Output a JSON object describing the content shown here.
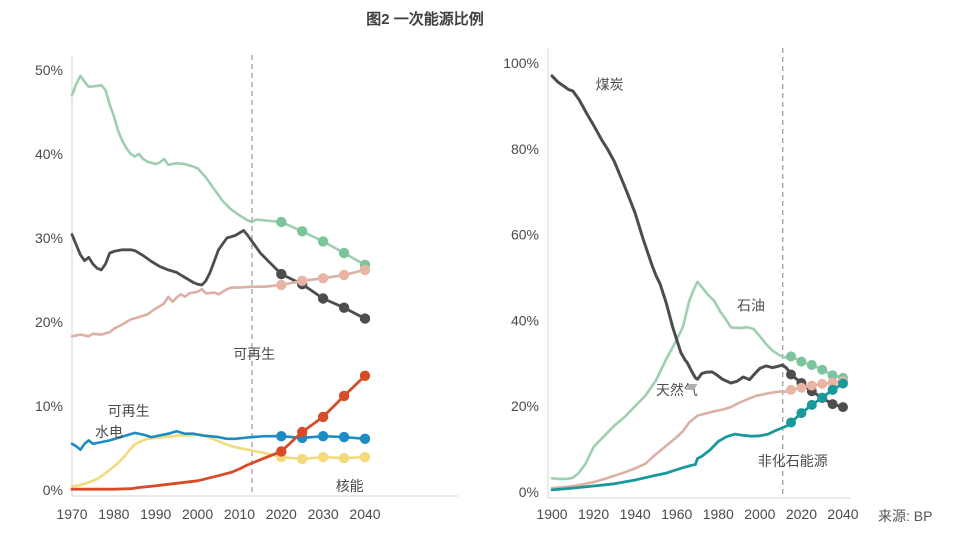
{
  "title": "图2 一次能源比例",
  "source": "来源: BP",
  "colors": {
    "axis": "#d4d4d4",
    "dashed": "#a0a0a0",
    "text": "#4a4a4a",
    "oil_green": "#9ecfb0",
    "oil_green_dot": "#7cc49c",
    "coal_dark": "#4d4d4d",
    "gas_pink": "#dcb0a5",
    "gas_pink_dot": "#e9b4a4",
    "hydro_blue": "#1d8cc2",
    "nuclear_yellow": "#f3da7d",
    "renew_red": "#d84b28",
    "nonfossil_teal": "#19999b"
  },
  "chart_data": [
    {
      "type": "line",
      "id": "left",
      "xlim": [
        1970,
        2040
      ],
      "ylim": [
        0,
        50
      ],
      "ytick_values": [
        0,
        10,
        20,
        30,
        40,
        50
      ],
      "ytick_labels": [
        "0%",
        "10%",
        "20%",
        "30%",
        "40%",
        "50%"
      ],
      "xticks": [
        1970,
        1980,
        1990,
        2000,
        2010,
        2020,
        2030,
        2040
      ],
      "dashed_x": 2013,
      "annotations": [
        {
          "text": "可再生",
          "x": 2008.5,
          "y": 16.2
        },
        {
          "text": "可再生",
          "x": 1978.5,
          "y": 9.4
        },
        {
          "text": "水电",
          "x": 1975.5,
          "y": 6.9
        },
        {
          "text": "核能",
          "x": 2033.0,
          "y": 0.5
        }
      ],
      "series": [
        {
          "id": "oil",
          "label": "",
          "color": "#9ecfb0",
          "dot_color": "#7cc49c",
          "width": 2.6,
          "x": [
            1970,
            1971,
            1972,
            1973,
            1974,
            1976,
            1977,
            1978,
            1979,
            1980,
            1981,
            1982,
            1983,
            1984,
            1985,
            1986,
            1987,
            1988,
            1990,
            1991,
            1992,
            1993,
            1995,
            1997,
            1999,
            2000,
            2002,
            2004,
            2006,
            2008,
            2010,
            2012,
            2013,
            2014,
            2016,
            2020,
            2025,
            2030,
            2035,
            2040
          ],
          "y": [
            47.0,
            48.3,
            49.3,
            48.6,
            48.0,
            48.1,
            48.2,
            47.6,
            45.9,
            44.5,
            42.8,
            41.6,
            40.7,
            40.0,
            39.7,
            40.0,
            39.4,
            39.1,
            38.8,
            39.0,
            39.4,
            38.7,
            38.9,
            38.8,
            38.5,
            38.3,
            37.2,
            35.8,
            34.4,
            33.4,
            32.7,
            32.1,
            31.9,
            32.2,
            32.1,
            31.9,
            30.8,
            29.6,
            28.2,
            26.8
          ],
          "dots": {
            "x": [
              2020,
              2025,
              2030,
              2035,
              2040
            ],
            "y": [
              31.9,
              30.8,
              29.6,
              28.2,
              26.8
            ]
          }
        },
        {
          "id": "coal",
          "label": "",
          "color": "#4d4d4d",
          "dot_color": "#4d4d4d",
          "width": 2.8,
          "x": [
            1970,
            1971,
            1972,
            1973,
            1974,
            1975,
            1976,
            1977,
            1978,
            1979,
            1980,
            1982,
            1984,
            1985,
            1987,
            1989,
            1991,
            1993,
            1995,
            1997,
            1999,
            2000,
            2001,
            2002,
            2003,
            2005,
            2007,
            2009,
            2010,
            2011,
            2012,
            2013,
            2015,
            2020,
            2025,
            2030,
            2035,
            2040
          ],
          "y": [
            30.4,
            29.2,
            28.0,
            27.3,
            27.7,
            26.9,
            26.4,
            26.2,
            26.9,
            28.2,
            28.4,
            28.6,
            28.6,
            28.5,
            27.9,
            27.2,
            26.6,
            26.2,
            25.9,
            25.3,
            24.7,
            24.5,
            24.4,
            24.9,
            25.9,
            28.6,
            30.0,
            30.3,
            30.6,
            30.9,
            30.3,
            29.6,
            28.2,
            25.7,
            24.5,
            22.8,
            21.7,
            20.4
          ],
          "dots": {
            "x": [
              2020,
              2025,
              2030,
              2035,
              2040
            ],
            "y": [
              25.7,
              24.5,
              22.8,
              21.7,
              20.4
            ]
          }
        },
        {
          "id": "gas",
          "label": "",
          "color": "#dcb0a5",
          "dot_color": "#e9b4a4",
          "width": 2.6,
          "x": [
            1970,
            1972,
            1974,
            1975,
            1977,
            1979,
            1980,
            1982,
            1984,
            1986,
            1988,
            1990,
            1992,
            1993,
            1994,
            1995,
            1996,
            1997,
            1998,
            2000,
            2001,
            2002,
            2004,
            2005,
            2007,
            2008,
            2010,
            2013,
            2016,
            2020,
            2025,
            2030,
            2035,
            2040
          ],
          "y": [
            18.3,
            18.5,
            18.3,
            18.6,
            18.5,
            18.8,
            19.2,
            19.7,
            20.3,
            20.6,
            20.9,
            21.6,
            22.2,
            23.0,
            22.4,
            22.9,
            23.3,
            23.0,
            23.4,
            23.6,
            23.9,
            23.4,
            23.5,
            23.3,
            23.9,
            24.1,
            24.1,
            24.2,
            24.2,
            24.4,
            24.9,
            25.2,
            25.6,
            26.2
          ],
          "dots": {
            "x": [
              2020,
              2025,
              2030,
              2035,
              2040
            ],
            "y": [
              24.4,
              24.9,
              25.2,
              25.6,
              26.2
            ]
          }
        },
        {
          "id": "nuclear",
          "label": "核能",
          "color": "#f3da7d",
          "dot_color": "#f3da7d",
          "width": 2.6,
          "x": [
            1970,
            1972,
            1974,
            1976,
            1978,
            1980,
            1981,
            1982,
            1983,
            1984,
            1985,
            1986,
            1987,
            1988,
            1990,
            1992,
            1994,
            1996,
            1998,
            2000,
            2001,
            2003,
            2005,
            2007,
            2009,
            2011,
            2013,
            2016,
            2020,
            2025,
            2030,
            2035,
            2040
          ],
          "y": [
            0.4,
            0.6,
            0.9,
            1.3,
            2.0,
            2.8,
            3.2,
            3.7,
            4.3,
            4.9,
            5.4,
            5.7,
            5.9,
            6.1,
            6.2,
            6.3,
            6.4,
            6.5,
            6.5,
            6.6,
            6.6,
            6.2,
            5.8,
            5.4,
            5.1,
            4.9,
            4.7,
            4.4,
            3.9,
            3.7,
            3.9,
            3.8,
            3.9
          ],
          "dots": {
            "x": [
              2020,
              2025,
              2030,
              2035,
              2040
            ],
            "y": [
              3.9,
              3.7,
              3.9,
              3.8,
              3.9
            ]
          }
        },
        {
          "id": "hydro",
          "label": "水电",
          "color": "#1d8cc2",
          "dot_color": "#1d8cc2",
          "width": 2.6,
          "x": [
            1970,
            1971,
            1972,
            1973,
            1974,
            1975,
            1977,
            1979,
            1981,
            1983,
            1985,
            1987,
            1989,
            1991,
            1993,
            1995,
            1997,
            1999,
            2001,
            2003,
            2005,
            2007,
            2009,
            2011,
            2013,
            2016,
            2020,
            2025,
            2030,
            2035,
            2040
          ],
          "y": [
            5.5,
            5.2,
            4.8,
            5.5,
            5.9,
            5.5,
            5.7,
            5.9,
            6.2,
            6.5,
            6.8,
            6.6,
            6.3,
            6.5,
            6.7,
            7.0,
            6.7,
            6.7,
            6.5,
            6.4,
            6.3,
            6.1,
            6.1,
            6.2,
            6.3,
            6.4,
            6.4,
            6.2,
            6.4,
            6.3,
            6.1
          ],
          "dots": {
            "x": [
              2020,
              2025,
              2030,
              2035,
              2040
            ],
            "y": [
              6.4,
              6.2,
              6.4,
              6.3,
              6.1
            ]
          }
        },
        {
          "id": "renewables",
          "label": "可再生",
          "color": "#d84b28",
          "dot_color": "#d84b28",
          "width": 2.8,
          "x": [
            1970,
            1975,
            1980,
            1984,
            1986,
            1990,
            1995,
            2000,
            2005,
            2008,
            2010,
            2012,
            2014,
            2016,
            2020,
            2025,
            2030,
            2035,
            2040
          ],
          "y": [
            0.1,
            0.1,
            0.1,
            0.15,
            0.3,
            0.5,
            0.8,
            1.1,
            1.7,
            2.1,
            2.5,
            3.0,
            3.4,
            3.8,
            4.6,
            6.9,
            8.7,
            11.2,
            13.6
          ],
          "dots": {
            "x": [
              2020,
              2025,
              2030,
              2035,
              2040
            ],
            "y": [
              4.6,
              6.9,
              8.7,
              11.2,
              13.6
            ]
          }
        }
      ]
    },
    {
      "type": "line",
      "id": "right",
      "xlim": [
        1900,
        2040
      ],
      "ylim": [
        0,
        100
      ],
      "ytick_values": [
        0,
        20,
        40,
        60,
        80,
        100
      ],
      "ytick_labels": [
        "0%",
        "20%",
        "40%",
        "60%",
        "80%",
        "100%"
      ],
      "xticks": [
        1900,
        1920,
        1940,
        1960,
        1980,
        2000,
        2020,
        2040
      ],
      "dashed_x": 2011,
      "annotations": [
        {
          "text": "煤炭",
          "x": 1921,
          "y": 95.0
        },
        {
          "text": "石油",
          "x": 1989,
          "y": 43.5
        },
        {
          "text": "天然气",
          "x": 1950,
          "y": 23.8
        },
        {
          "text": "非化石能源",
          "x": 1999,
          "y": 7.2
        }
      ],
      "series": [
        {
          "id": "oil",
          "label": "石油",
          "color": "#9ecfb0",
          "dot_color": "#7cc49c",
          "width": 2.6,
          "x": [
            1900,
            1904,
            1908,
            1910,
            1913,
            1916,
            1920,
            1925,
            1930,
            1935,
            1940,
            1945,
            1950,
            1955,
            1960,
            1963,
            1966,
            1968,
            1970,
            1972,
            1975,
            1978,
            1981,
            1984,
            1986,
            1990,
            1994,
            1997,
            2000,
            2003,
            2006,
            2009,
            2012,
            2013,
            2015,
            2020,
            2025,
            2030,
            2035,
            2040
          ],
          "y": [
            3.2,
            3.0,
            3.1,
            3.3,
            4.5,
            6.5,
            10.5,
            13.0,
            15.5,
            17.5,
            20.0,
            22.5,
            26.0,
            31.0,
            35.5,
            38.5,
            44.5,
            47.0,
            49.0,
            47.8,
            46.0,
            44.6,
            42.0,
            40.0,
            38.4,
            38.2,
            38.4,
            38.0,
            36.3,
            34.5,
            33.0,
            32.0,
            31.4,
            31.3,
            31.6,
            30.4,
            29.6,
            28.5,
            27.2,
            26.6
          ],
          "dots": {
            "x": [
              2015,
              2020,
              2025,
              2030,
              2035,
              2040
            ],
            "y": [
              31.6,
              30.4,
              29.6,
              28.5,
              27.2,
              26.6
            ]
          }
        },
        {
          "id": "coal",
          "label": "煤炭",
          "color": "#4d4d4d",
          "dot_color": "#4d4d4d",
          "width": 3.0,
          "x": [
            1900,
            1903,
            1906,
            1908,
            1910,
            1913,
            1917,
            1920,
            1924,
            1927,
            1930,
            1933,
            1936,
            1940,
            1944,
            1948,
            1950,
            1952,
            1955,
            1958,
            1960,
            1962,
            1964,
            1965,
            1967,
            1969,
            1970,
            1972,
            1974,
            1977,
            1979,
            1982,
            1986,
            1989,
            1992,
            1995,
            1998,
            2000,
            2003,
            2006,
            2008,
            2011,
            2013,
            2015,
            2020,
            2025,
            2030,
            2035,
            2040
          ],
          "y": [
            97.0,
            95.5,
            94.5,
            93.8,
            93.5,
            91.5,
            88.0,
            85.5,
            82.0,
            79.7,
            77.0,
            73.5,
            70.0,
            65.0,
            58.7,
            53.0,
            50.5,
            48.5,
            44.0,
            38.5,
            35.5,
            32.5,
            30.8,
            30.2,
            28.3,
            26.6,
            26.3,
            27.6,
            27.9,
            28.0,
            27.4,
            26.3,
            25.4,
            25.8,
            26.8,
            26.2,
            27.8,
            28.8,
            29.4,
            29.0,
            29.2,
            29.6,
            28.8,
            27.4,
            25.4,
            23.5,
            21.9,
            20.5,
            19.8
          ],
          "dots": {
            "x": [
              2015,
              2020,
              2025,
              2030,
              2035,
              2040
            ],
            "y": [
              27.4,
              25.4,
              23.5,
              21.9,
              20.5,
              19.8
            ]
          }
        },
        {
          "id": "gas",
          "label": "天然气",
          "color": "#dcb0a5",
          "dot_color": "#e9b4a4",
          "width": 2.6,
          "x": [
            1900,
            1905,
            1910,
            1915,
            1920,
            1925,
            1930,
            1935,
            1940,
            1945,
            1950,
            1955,
            1960,
            1963,
            1966,
            1970,
            1974,
            1978,
            1982,
            1986,
            1990,
            1994,
            1998,
            2002,
            2006,
            2010,
            2013,
            2015,
            2020,
            2025,
            2030,
            2035,
            2040
          ],
          "y": [
            0.9,
            1.1,
            1.4,
            1.8,
            2.3,
            3.0,
            3.8,
            4.6,
            5.5,
            6.6,
            8.8,
            10.8,
            12.8,
            14.2,
            16.2,
            17.8,
            18.3,
            18.8,
            19.2,
            19.8,
            20.8,
            21.6,
            22.4,
            22.8,
            23.2,
            23.4,
            23.4,
            23.8,
            24.3,
            24.8,
            25.2,
            25.5,
            25.8
          ],
          "dots": {
            "x": [
              2015,
              2020,
              2025,
              2030,
              2035,
              2040
            ],
            "y": [
              23.8,
              24.3,
              24.8,
              25.2,
              25.5,
              25.8
            ]
          }
        },
        {
          "id": "nonfossil",
          "label": "非化石能源",
          "color": "#19999b",
          "dot_color": "#19999b",
          "width": 2.8,
          "x": [
            1900,
            1910,
            1920,
            1930,
            1940,
            1950,
            1955,
            1960,
            1964,
            1967,
            1969,
            1970,
            1972,
            1976,
            1980,
            1984,
            1988,
            1992,
            1996,
            2000,
            2004,
            2007,
            2010,
            2013,
            2015,
            2020,
            2025,
            2030,
            2035,
            2040
          ],
          "y": [
            0.5,
            0.9,
            1.4,
            1.9,
            2.8,
            3.9,
            4.4,
            5.2,
            5.8,
            6.2,
            6.4,
            7.8,
            8.3,
            9.8,
            11.8,
            12.9,
            13.5,
            13.2,
            13.0,
            13.1,
            13.5,
            14.2,
            14.8,
            15.4,
            16.2,
            18.4,
            20.3,
            22.0,
            23.8,
            25.3
          ],
          "dots": {
            "x": [
              2015,
              2020,
              2025,
              2030,
              2035,
              2040
            ],
            "y": [
              16.2,
              18.4,
              20.3,
              22.0,
              23.8,
              25.3
            ]
          }
        }
      ]
    }
  ]
}
